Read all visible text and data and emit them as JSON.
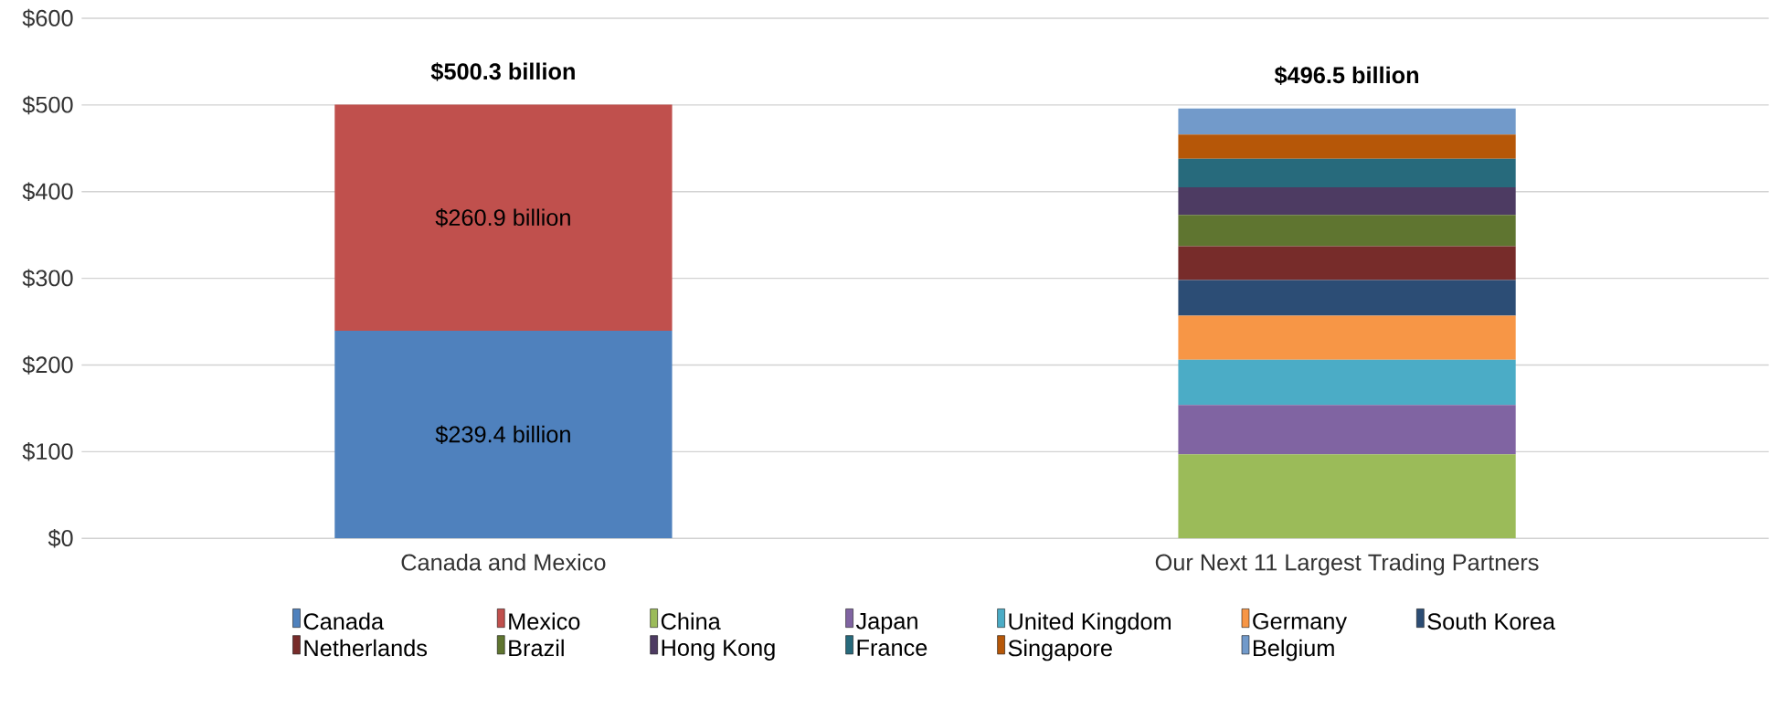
{
  "chart_data": {
    "type": "bar",
    "stacked": true,
    "categories": [
      "Canada and Mexico",
      "Our Next 11 Largest Trading Partners"
    ],
    "series": [
      {
        "name": "Canada",
        "color": "#4f81bd",
        "values": [
          239.4,
          null
        ],
        "value_labels": [
          "$239.4 billion",
          null
        ]
      },
      {
        "name": "Mexico",
        "color": "#c0504d",
        "values": [
          260.9,
          null
        ],
        "value_labels": [
          "$260.9 billion",
          null
        ]
      },
      {
        "name": "China",
        "color": "#9bbb59",
        "values": [
          null,
          97
        ]
      },
      {
        "name": "Japan",
        "color": "#8064a2",
        "values": [
          null,
          57
        ]
      },
      {
        "name": "United Kingdom",
        "color": "#4bacc6",
        "values": [
          null,
          52
        ]
      },
      {
        "name": "Germany",
        "color": "#f79646",
        "values": [
          null,
          51
        ]
      },
      {
        "name": "South Korea",
        "color": "#2c4d75",
        "values": [
          null,
          41
        ]
      },
      {
        "name": "Netherlands",
        "color": "#772c2a",
        "values": [
          null,
          39
        ]
      },
      {
        "name": "Brazil",
        "color": "#5f7530",
        "values": [
          null,
          36
        ]
      },
      {
        "name": "Hong Kong",
        "color": "#4d3b62",
        "values": [
          null,
          32
        ]
      },
      {
        "name": "France",
        "color": "#276a7c",
        "values": [
          null,
          33
        ]
      },
      {
        "name": "Singapore",
        "color": "#b65708",
        "values": [
          null,
          28
        ]
      },
      {
        "name": "Belgium",
        "color": "#729aca",
        "values": [
          null,
          30
        ]
      }
    ],
    "totals": [
      "$500.3 billion",
      "$496.5 billion"
    ],
    "ylim": [
      0,
      600
    ],
    "yticks": [
      {
        "value": 0,
        "label": "$0"
      },
      {
        "value": 100,
        "label": "$100"
      },
      {
        "value": 200,
        "label": "$200"
      },
      {
        "value": 300,
        "label": "$300"
      },
      {
        "value": 400,
        "label": "$400"
      },
      {
        "value": 500,
        "label": "$500"
      },
      {
        "value": 600,
        "label": "$600"
      }
    ],
    "grid": "y",
    "legend": "bottom"
  }
}
